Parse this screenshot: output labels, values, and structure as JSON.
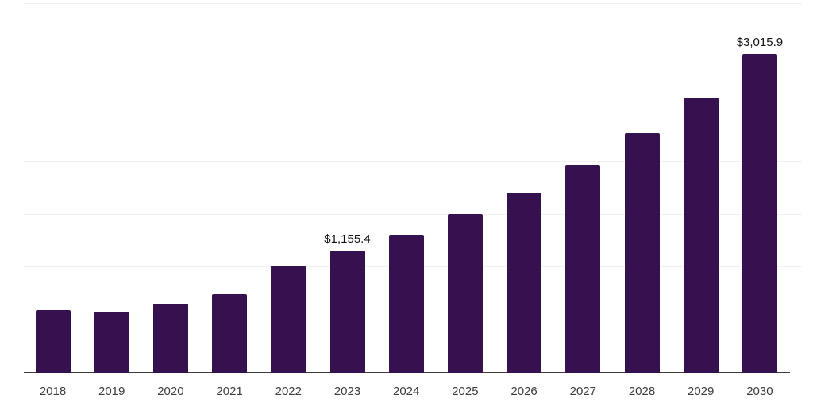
{
  "chart_data": {
    "type": "bar",
    "title": "",
    "xlabel": "",
    "ylabel": "",
    "categories": [
      "2018",
      "2019",
      "2020",
      "2021",
      "2022",
      "2023",
      "2024",
      "2025",
      "2026",
      "2027",
      "2028",
      "2029",
      "2030"
    ],
    "values": [
      590,
      580,
      655,
      745,
      1015,
      1155.4,
      1310,
      1500,
      1705,
      1965,
      2265,
      2610,
      3015.9
    ],
    "labeled_values": [
      {
        "category": "2023",
        "label": "$1,155.4"
      },
      {
        "category": "2030",
        "label": "$3,015.9"
      }
    ],
    "ylim": [
      0,
      3500
    ],
    "gridline_interval": 500,
    "grid": "horizontal",
    "y_tick_labels_visible": false,
    "legend_position": "none",
    "bar_color": "#361150",
    "gridline_color": "#f1f1f4",
    "axis_line_color": "#3b3b3b"
  }
}
